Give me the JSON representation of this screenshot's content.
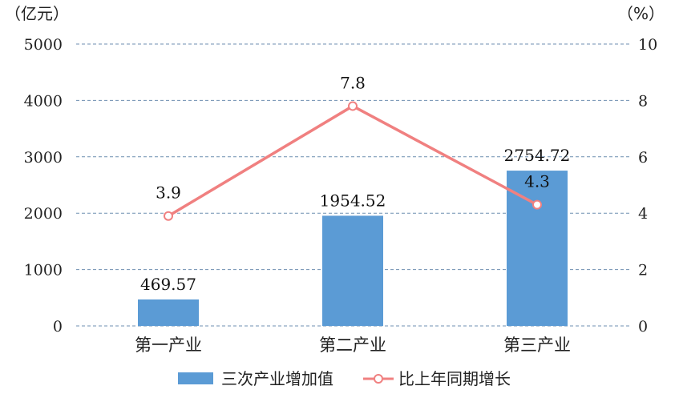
{
  "chart_data": {
    "type": "bar",
    "categories": [
      "第一产业",
      "第二产业",
      "第三产业"
    ],
    "series": [
      {
        "name": "三次产业增加值",
        "type": "bar",
        "axis": "left",
        "values": [
          469.57,
          1954.52,
          2754.72
        ],
        "labels": [
          "469.57",
          "1954.52",
          "2754.72"
        ]
      },
      {
        "name": "比上年同期增长",
        "type": "line",
        "axis": "right",
        "values": [
          3.9,
          7.8,
          4.3
        ],
        "labels": [
          "3.9",
          "7.8",
          "4.3"
        ]
      }
    ],
    "left_axis": {
      "unit": "（亿元）",
      "ylim": [
        0,
        5000
      ],
      "ticks": [
        0,
        1000,
        2000,
        3000,
        4000,
        5000
      ],
      "tick_labels": [
        "0",
        "1000",
        "2000",
        "3000",
        "4000",
        "5000"
      ]
    },
    "right_axis": {
      "unit": "（%）",
      "ylim": [
        0,
        10
      ],
      "ticks": [
        0,
        2,
        4,
        6,
        8,
        10
      ],
      "tick_labels": [
        "0",
        "2",
        "4",
        "6",
        "8",
        "10"
      ]
    },
    "grid": true,
    "legend_position": "bottom",
    "colors": {
      "bar": "#5b9bd5",
      "line": "#f08080",
      "grid": "#6f8fb0"
    }
  }
}
